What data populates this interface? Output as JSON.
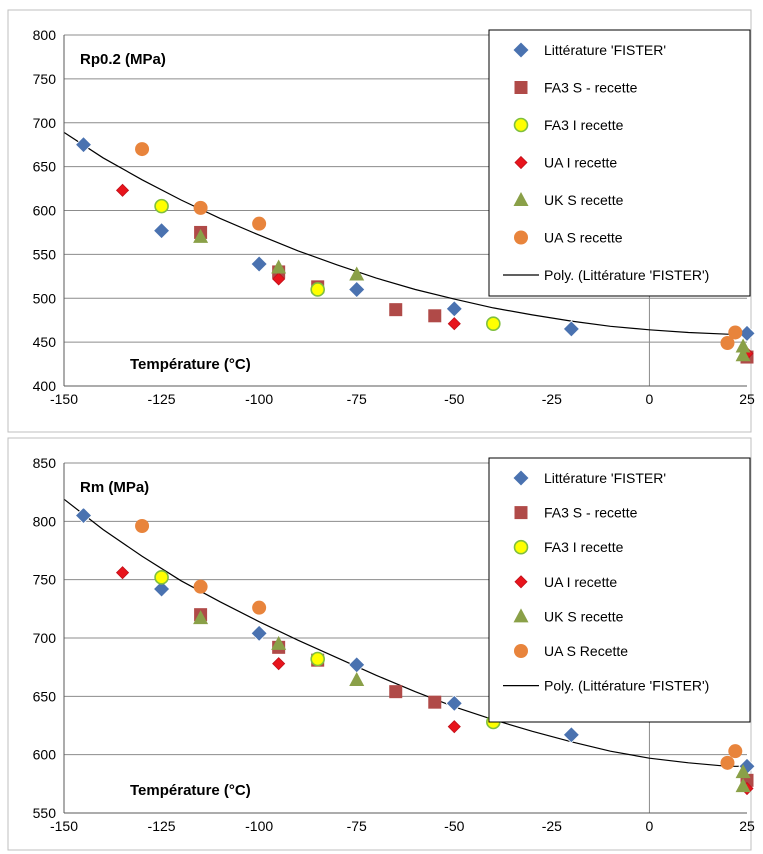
{
  "chart_data": [
    {
      "type": "scatter",
      "title": "Rp0.2 (MPa)",
      "xlabel": "Température (°C)",
      "ylabel": "",
      "xlim": [
        -150,
        25
      ],
      "ylim": [
        400,
        800
      ],
      "xticks": [
        -150,
        -125,
        -100,
        -75,
        -50,
        -25,
        0,
        25
      ],
      "yticks": [
        400,
        450,
        500,
        550,
        600,
        650,
        700,
        750,
        800
      ],
      "grid": "horizontal",
      "legend_position": "top-right",
      "series": [
        {
          "name": "Littérature 'FISTER'",
          "marker": "diamond",
          "color": "#4a72b0",
          "points": [
            [
              -145,
              675
            ],
            [
              -125,
              577
            ],
            [
              -100,
              539
            ],
            [
              -75,
              510
            ],
            [
              -50,
              488
            ],
            [
              -20,
              465
            ],
            [
              25,
              460
            ]
          ]
        },
        {
          "name": "FA3 S - recette",
          "marker": "square",
          "color": "#b04a48",
          "points": [
            [
              -115,
              575
            ],
            [
              -95,
              530
            ],
            [
              -85,
              513
            ],
            [
              -65,
              487
            ],
            [
              -55,
              480
            ],
            [
              25,
              433
            ]
          ]
        },
        {
          "name": "FA3 I recette",
          "marker": "circle-yellow",
          "color": "#ffff00",
          "points": [
            [
              -125,
              605
            ],
            [
              -85,
              510
            ],
            [
              -40,
              471
            ]
          ]
        },
        {
          "name": "UA I recette",
          "marker": "diamond-small",
          "color": "#e8141c",
          "points": [
            [
              -135,
              623
            ],
            [
              -95,
              522
            ],
            [
              -50,
              471
            ],
            [
              25,
              437
            ]
          ]
        },
        {
          "name": "UK S recette",
          "marker": "triangle",
          "color": "#8aa048",
          "points": [
            [
              -115,
              570
            ],
            [
              -95,
              535
            ],
            [
              -75,
              527
            ],
            [
              24,
              445
            ],
            [
              24,
              435
            ]
          ]
        },
        {
          "name": "UA S recette",
          "marker": "circle",
          "color": "#e8843c",
          "points": [
            [
              -130,
              670
            ],
            [
              -115,
              603
            ],
            [
              -100,
              585
            ],
            [
              20,
              449
            ],
            [
              22,
              461
            ]
          ]
        }
      ],
      "trendline": {
        "name": "Poly. (Littérature 'FISTER')",
        "type": "polynomial",
        "x": [
          -150,
          -140,
          -130,
          -120,
          -110,
          -100,
          -90,
          -80,
          -70,
          -60,
          -50,
          -40,
          -30,
          -20,
          -10,
          0,
          10,
          20,
          25
        ],
        "y": [
          689,
          660,
          635,
          612,
          591,
          572,
          554,
          538,
          523,
          510,
          499,
          489,
          481,
          474,
          468,
          464,
          461,
          459,
          459
        ]
      }
    },
    {
      "type": "scatter",
      "title": "Rm (MPa)",
      "xlabel": "Température (°C)",
      "ylabel": "",
      "xlim": [
        -150,
        25
      ],
      "ylim": [
        550,
        850
      ],
      "xticks": [
        -150,
        -125,
        -100,
        -75,
        -50,
        -25,
        0,
        25
      ],
      "yticks": [
        550,
        600,
        650,
        700,
        750,
        800,
        850
      ],
      "grid": "horizontal",
      "legend_position": "top-right",
      "series": [
        {
          "name": "Littérature 'FISTER'",
          "marker": "diamond",
          "color": "#4a72b0",
          "points": [
            [
              -145,
              805
            ],
            [
              -125,
              742
            ],
            [
              -100,
              704
            ],
            [
              -75,
              677
            ],
            [
              -50,
              644
            ],
            [
              -20,
              617
            ],
            [
              25,
              590
            ]
          ]
        },
        {
          "name": "FA3 S - recette",
          "marker": "square",
          "color": "#b04a48",
          "points": [
            [
              -115,
              720
            ],
            [
              -95,
              692
            ],
            [
              -85,
              681
            ],
            [
              -65,
              654
            ],
            [
              -55,
              645
            ],
            [
              25,
              578
            ]
          ]
        },
        {
          "name": "FA3 I recette",
          "marker": "circle-yellow",
          "color": "#ffff00",
          "points": [
            [
              -125,
              752
            ],
            [
              -85,
              682
            ],
            [
              -40,
              628
            ]
          ]
        },
        {
          "name": "UA I recette",
          "marker": "diamond-small",
          "color": "#e8141c",
          "points": [
            [
              -135,
              756
            ],
            [
              -95,
              678
            ],
            [
              -50,
              624
            ],
            [
              25,
              571
            ]
          ]
        },
        {
          "name": "UK S recette",
          "marker": "triangle",
          "color": "#8aa048",
          "points": [
            [
              -115,
              717
            ],
            [
              -95,
              695
            ],
            [
              -75,
              664
            ],
            [
              24,
              585
            ],
            [
              24,
              573
            ]
          ]
        },
        {
          "name": "UA S Recette",
          "marker": "circle",
          "color": "#e8843c",
          "points": [
            [
              -130,
              796
            ],
            [
              -115,
              744
            ],
            [
              -100,
              726
            ],
            [
              20,
              593
            ],
            [
              22,
              603
            ]
          ]
        }
      ],
      "trendline": {
        "name": "Poly. (Littérature 'FISTER')",
        "type": "polynomial",
        "x": [
          -150,
          -140,
          -130,
          -120,
          -110,
          -100,
          -90,
          -80,
          -70,
          -60,
          -50,
          -40,
          -30,
          -20,
          -10,
          0,
          10,
          20,
          25
        ],
        "y": [
          819,
          793,
          770,
          749,
          731,
          714,
          698,
          683,
          668,
          654,
          641,
          630,
          620,
          611,
          603,
          597,
          593,
          590,
          590
        ]
      }
    }
  ]
}
